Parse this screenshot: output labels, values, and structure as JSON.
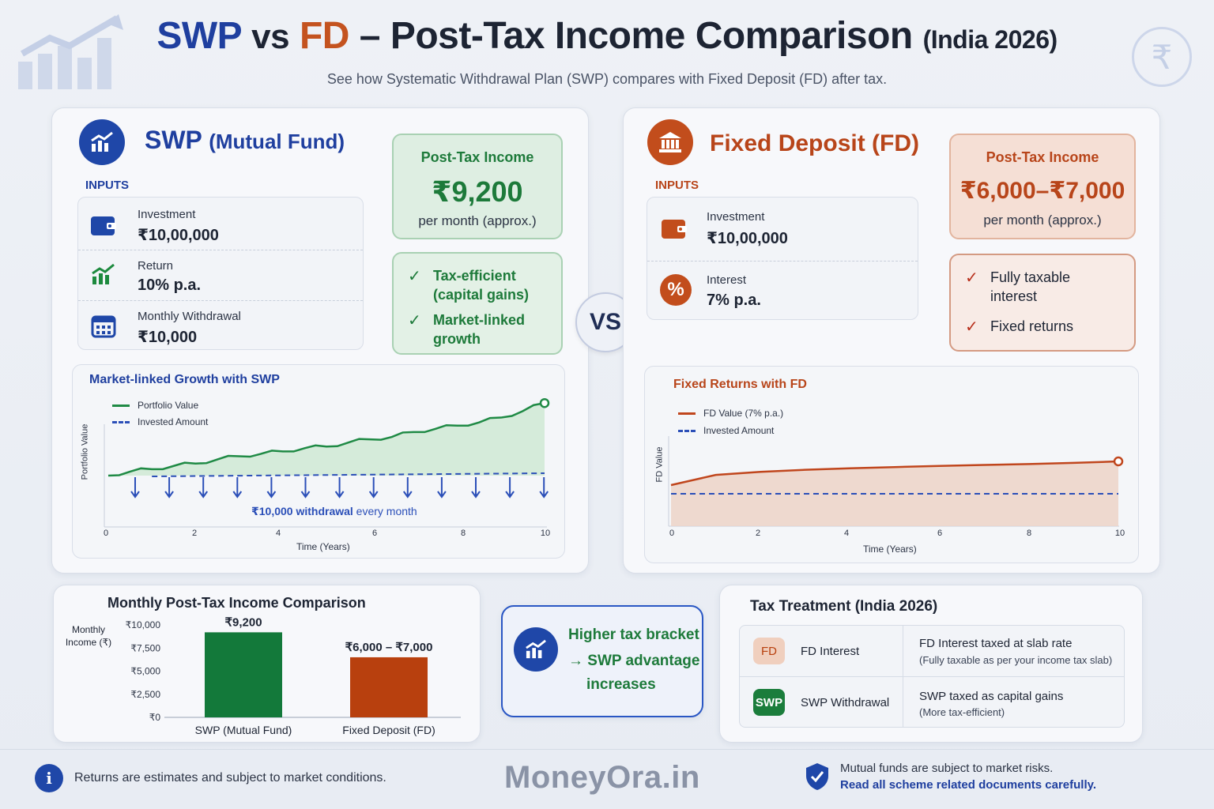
{
  "header": {
    "title_swp": "SWP",
    "title_vs": "vs",
    "title_fd": "FD",
    "title_rest": "– Post-Tax Income Comparison",
    "title_suffix": "(India 2026)",
    "subtitle": "See how Systematic Withdrawal Plan (SWP) compares with Fixed Deposit (FD) after tax."
  },
  "swp": {
    "title": "SWP",
    "title_sub": "(Mutual Fund)",
    "inputs_label": "INPUTS",
    "inputs": [
      {
        "label": "Investment",
        "value": "₹10,00,000",
        "icon": "wallet-icon"
      },
      {
        "label": "Return",
        "value": "10% p.a.",
        "icon": "growth-chart-icon"
      },
      {
        "label": "Monthly Withdrawal",
        "value": "₹10,000",
        "icon": "calendar-icon"
      }
    ],
    "post_tax": {
      "heading": "Post-Tax Income",
      "value": "₹9,200",
      "sub": "per month (approx.)"
    },
    "features": [
      "Tax-efficient (capital gains)",
      "Market-linked growth"
    ]
  },
  "vs_label": "VS",
  "fd": {
    "title": "Fixed Deposit (FD)",
    "inputs_label": "INPUTS",
    "inputs": [
      {
        "label": "Investment",
        "value": "₹10,00,000",
        "icon": "wallet-icon"
      },
      {
        "label": "Interest",
        "value": "7% p.a.",
        "icon": "percent-icon"
      }
    ],
    "post_tax": {
      "heading": "Post-Tax Income",
      "value": "₹6,000–₹7,000",
      "sub": "per month (approx.)"
    },
    "features": [
      "Fully taxable interest",
      "Fixed returns"
    ]
  },
  "swp_chart": {
    "title": "Market-linked Growth with SWP",
    "legend": [
      "Portfolio Value",
      "Invested Amount"
    ],
    "ylabel": "Portfolio Value",
    "xlabel": "Time (Years)",
    "xticks": [
      "0",
      "2",
      "4",
      "6",
      "8",
      "10"
    ],
    "annotation_bold": "₹10,000 withdrawal",
    "annotation_rest": " every month",
    "colors": {
      "portfolio": "#1f8a45",
      "invested": "#2b4fb8"
    }
  },
  "fd_chart": {
    "title": "Fixed Returns with FD",
    "legend": [
      "FD Value (7% p.a.)",
      "Invested Amount"
    ],
    "ylabel": "FD Value",
    "xlabel": "Time (Years)",
    "xticks": [
      "0",
      "2",
      "4",
      "6",
      "8",
      "10"
    ],
    "colors": {
      "fd": "#c0461d",
      "invested": "#2b4fb8"
    }
  },
  "chart_data": [
    {
      "type": "line",
      "title": "Market-linked Growth with SWP",
      "xlabel": "Time (Years)",
      "ylabel": "Portfolio Value",
      "xlim": [
        0,
        10
      ],
      "series": [
        {
          "name": "Portfolio Value",
          "x": [
            0,
            0.5,
            1,
            1.5,
            2,
            2.5,
            3,
            3.5,
            4,
            4.5,
            5,
            5.5,
            6,
            6.5,
            7,
            7.5,
            8,
            8.5,
            9,
            9.5,
            10
          ],
          "y": [
            0,
            0.05,
            0.08,
            0.12,
            0.15,
            0.2,
            0.24,
            0.27,
            0.3,
            0.34,
            0.36,
            0.41,
            0.45,
            0.48,
            0.54,
            0.58,
            0.62,
            0.66,
            0.72,
            0.8,
            0.9
          ]
        },
        {
          "name": "Invested Amount",
          "x": [
            0,
            10
          ],
          "y": [
            0,
            0
          ]
        }
      ]
    },
    {
      "type": "line",
      "title": "Fixed Returns with FD",
      "xlabel": "Time (Years)",
      "ylabel": "FD Value",
      "xlim": [
        0,
        10
      ],
      "series": [
        {
          "name": "FD Value (7% p.a.)",
          "x": [
            0,
            1,
            2,
            3,
            4,
            5,
            6,
            7,
            8,
            9,
            10
          ],
          "y": [
            0.3,
            0.55,
            0.65,
            0.72,
            0.77,
            0.81,
            0.85,
            0.88,
            0.91,
            0.95,
            1.0
          ]
        },
        {
          "name": "Invested Amount",
          "x": [
            0,
            10
          ],
          "y": [
            0,
            0
          ]
        }
      ]
    },
    {
      "type": "bar",
      "title": "Monthly Post-Tax Income Comparison",
      "ylabel": "Monthly Income (₹)",
      "categories": [
        "SWP (Mutual Fund)",
        "Fixed Deposit (FD)"
      ],
      "values": [
        9200,
        6500
      ],
      "data_labels": [
        "₹9,200",
        "₹6,000 – ₹7,000"
      ],
      "yticks": [
        "₹0",
        "₹2,500",
        "₹5,000",
        "₹7,500",
        "₹10,000"
      ],
      "ylim": [
        0,
        10000
      ],
      "colors": [
        "#13793a",
        "#b8400e"
      ]
    }
  ],
  "bar_section": {
    "title": "Monthly Post-Tax Income Comparison",
    "ylabel_1": "Monthly",
    "ylabel_2": "Income (₹)"
  },
  "callout": {
    "line1": "Higher tax bracket",
    "line2": "→ SWP advantage",
    "line3": "increases"
  },
  "tax": {
    "title": "Tax Treatment (India 2026)",
    "rows": [
      {
        "badge": "FD",
        "name": "FD Interest",
        "desc": "FD Interest taxed at slab rate",
        "note": "(Fully taxable as per your income tax slab)"
      },
      {
        "badge": "SWP",
        "name": "SWP Withdrawal",
        "desc": "SWP taxed as capital gains",
        "note": "(More tax-efficient)"
      }
    ]
  },
  "footer": {
    "left": "Returns are estimates and subject to market conditions.",
    "brand": "MoneyOra.in",
    "right1": "Mutual funds are subject to market risks.",
    "right2": "Read all scheme related documents carefully."
  }
}
